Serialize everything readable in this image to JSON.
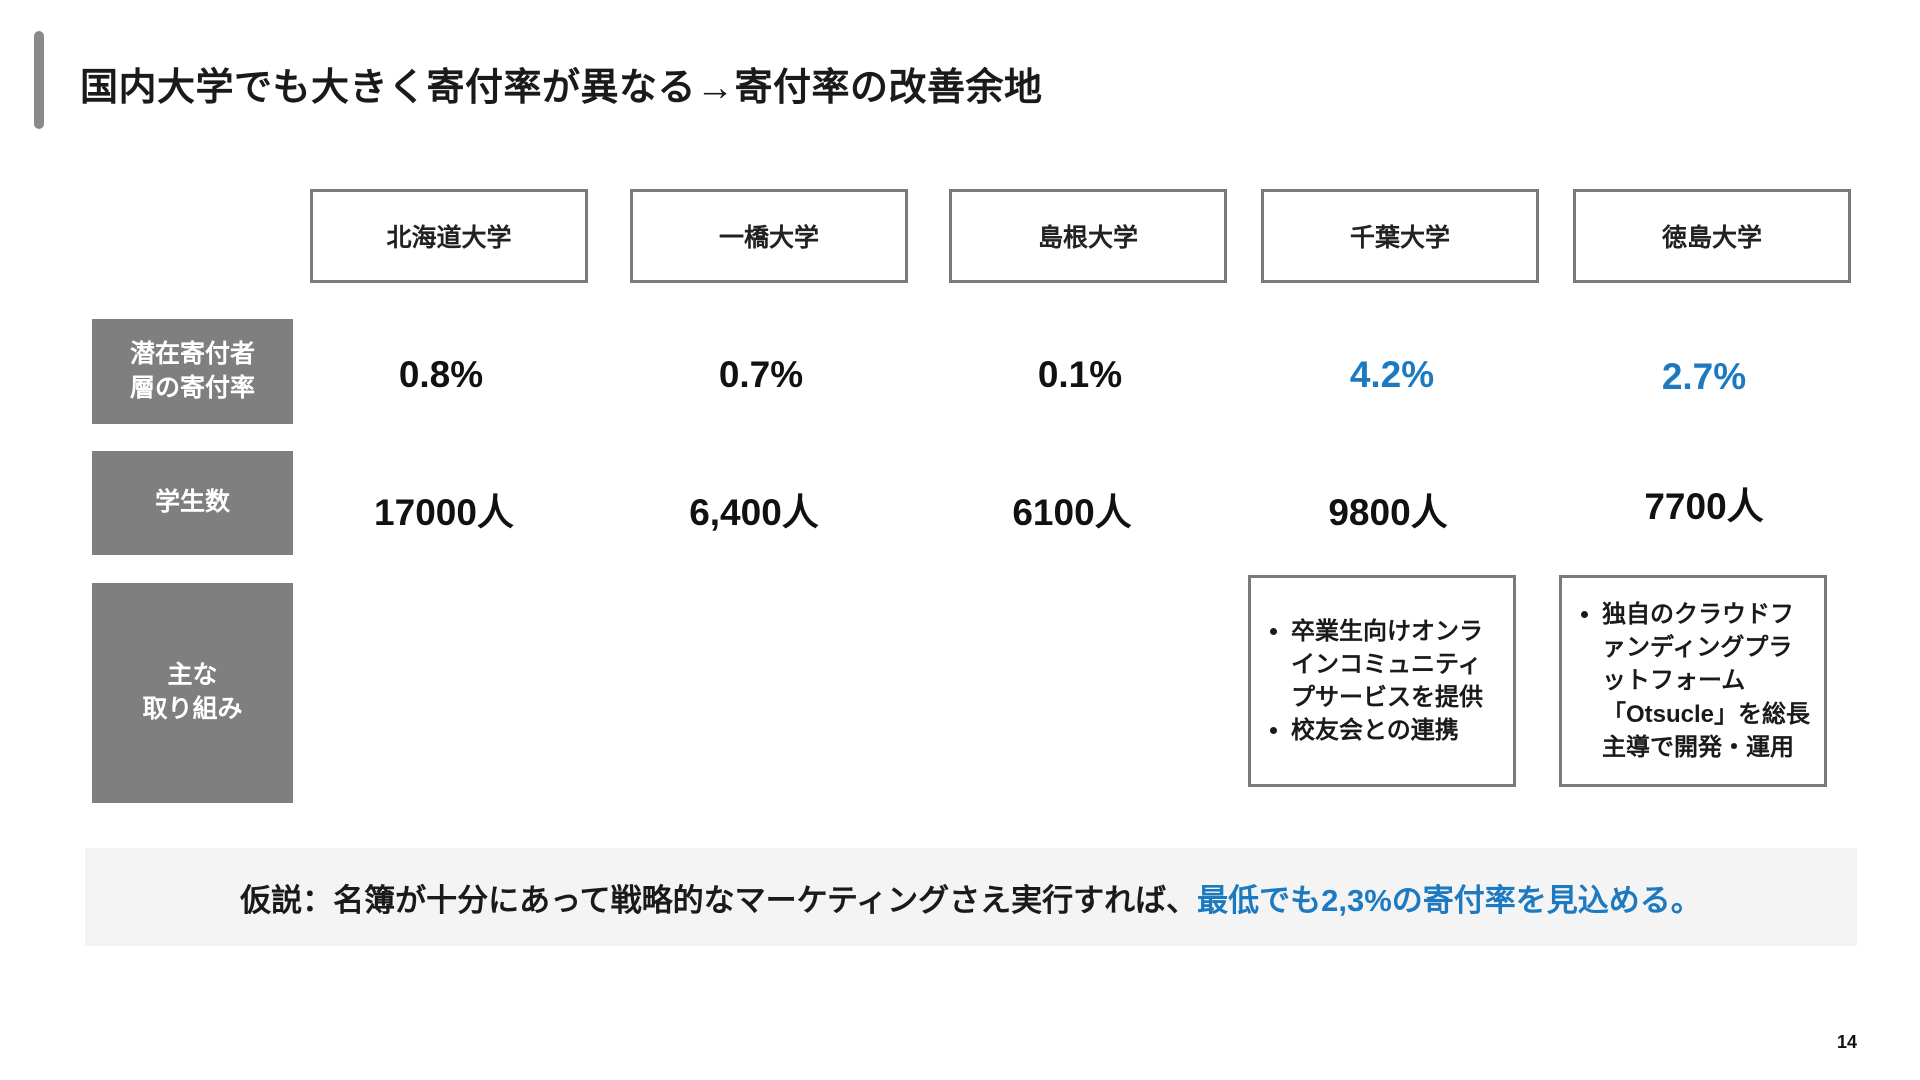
{
  "slide": {
    "title": "国内大学でも大きく寄付率が異なる→寄付率の改善余地",
    "page_number": "14"
  },
  "universities": [
    {
      "name": "北海道大学"
    },
    {
      "name": "一橋大学"
    },
    {
      "name": "島根大学"
    },
    {
      "name": "千葉大学"
    },
    {
      "name": "徳島大学"
    }
  ],
  "row_labels": {
    "donation_rate_line1": "潜在寄付者",
    "donation_rate_line2": "層の寄付率",
    "students": "学生数",
    "initiatives_line1": "主な",
    "initiatives_line2": "取り組み"
  },
  "donation_rates": [
    "0.8%",
    "0.7%",
    "0.1%",
    "4.2%",
    "2.7%"
  ],
  "student_counts": [
    "17000人",
    "6,400人",
    "6100人",
    "9800人",
    "7700人"
  ],
  "initiatives": {
    "chiba": [
      "卒業生向けオンラインコミュニティプサービスを提供",
      "校友会との連携"
    ],
    "tokushima": [
      "独自のクラウドファンディングプラットフォーム「Otsucle」を総長主導で開発・運用"
    ]
  },
  "hypothesis": {
    "prefix": "仮説：名簿が十分にあって戦略的なマーケティングさえ実行すれば、",
    "highlight": "最低でも2,3%の寄付率を見込める。"
  },
  "colors": {
    "accent_blue": "#1e7ac0",
    "label_gray": "#7f7f7f",
    "border_gray": "#7a7a7a"
  }
}
